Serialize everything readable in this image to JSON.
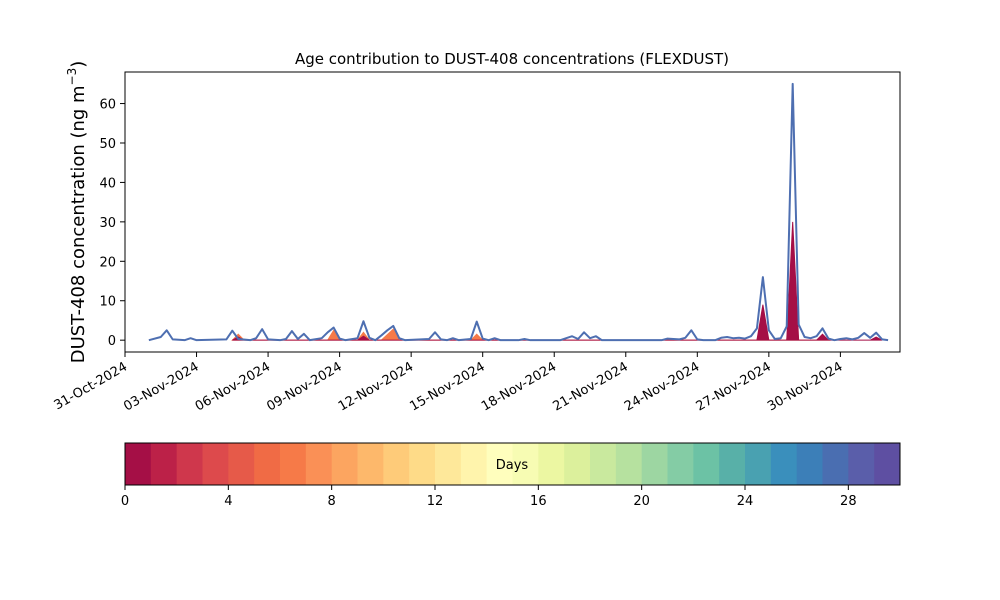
{
  "chart_data": {
    "type": "area",
    "title": "Age contribution to DUST-408 concentrations (FLEXDUST)",
    "ylabel": "DUST-408 concentration (ng m",
    "ylabel_superscript": "−3",
    "ylabel_close": ")",
    "xlabel": "",
    "ylim": [
      -3,
      68
    ],
    "xlim": [
      "2024-10-31T00:00",
      "2024-12-02T12:00"
    ],
    "grid": false,
    "x_ticks": [
      "31-Oct-2024",
      "03-Nov-2024",
      "06-Nov-2024",
      "09-Nov-2024",
      "12-Nov-2024",
      "15-Nov-2024",
      "18-Nov-2024",
      "21-Nov-2024",
      "24-Nov-2024",
      "27-Nov-2024",
      "30-Nov-2024"
    ],
    "y_ticks": [
      0,
      10,
      20,
      30,
      40,
      50,
      60
    ],
    "series": [
      {
        "type": "line",
        "color": "#4e6fb1",
        "points": [
          [
            "2024-11-01T00:00",
            0
          ],
          [
            "2024-11-01T12:00",
            0.8
          ],
          [
            "2024-11-01T18:00",
            2.5
          ],
          [
            "2024-11-02T00:00",
            0.2
          ],
          [
            "2024-11-02T12:00",
            0
          ],
          [
            "2024-11-02T18:00",
            0.5
          ],
          [
            "2024-11-03T00:00",
            0
          ],
          [
            "2024-11-04T06:00",
            0.2
          ],
          [
            "2024-11-04T12:00",
            2.4
          ],
          [
            "2024-11-04T18:00",
            0.3
          ],
          [
            "2024-11-05T06:00",
            0
          ],
          [
            "2024-11-05T12:00",
            0.5
          ],
          [
            "2024-11-05T18:00",
            2.8
          ],
          [
            "2024-11-06T00:00",
            0.2
          ],
          [
            "2024-11-06T12:00",
            0
          ],
          [
            "2024-11-06T18:00",
            0.3
          ],
          [
            "2024-11-07T00:00",
            2.3
          ],
          [
            "2024-11-07T06:00",
            0.3
          ],
          [
            "2024-11-07T12:00",
            1.6
          ],
          [
            "2024-11-07T18:00",
            0
          ],
          [
            "2024-11-08T06:00",
            0.5
          ],
          [
            "2024-11-08T12:00",
            2.0
          ],
          [
            "2024-11-08T18:00",
            3.2
          ],
          [
            "2024-11-09T00:00",
            0.4
          ],
          [
            "2024-11-09T06:00",
            0
          ],
          [
            "2024-11-09T18:00",
            0.5
          ],
          [
            "2024-11-10T00:00",
            4.8
          ],
          [
            "2024-11-10T06:00",
            0.6
          ],
          [
            "2024-11-10T12:00",
            0
          ],
          [
            "2024-11-10T18:00",
            1.2
          ],
          [
            "2024-11-11T00:00",
            2.5
          ],
          [
            "2024-11-11T06:00",
            3.6
          ],
          [
            "2024-11-11T12:00",
            0.5
          ],
          [
            "2024-11-11T18:00",
            0
          ],
          [
            "2024-11-12T18:00",
            0.3
          ],
          [
            "2024-11-13T00:00",
            2.0
          ],
          [
            "2024-11-13T06:00",
            0.2
          ],
          [
            "2024-11-13T12:00",
            0
          ],
          [
            "2024-11-13T18:00",
            0.5
          ],
          [
            "2024-11-14T00:00",
            0
          ],
          [
            "2024-11-14T12:00",
            0.3
          ],
          [
            "2024-11-14T18:00",
            4.7
          ],
          [
            "2024-11-15T00:00",
            0.4
          ],
          [
            "2024-11-15T06:00",
            0
          ],
          [
            "2024-11-15T12:00",
            0.5
          ],
          [
            "2024-11-15T18:00",
            0
          ],
          [
            "2024-11-16T12:00",
            0
          ],
          [
            "2024-11-16T18:00",
            0.3
          ],
          [
            "2024-11-17T00:00",
            0
          ],
          [
            "2024-11-18T06:00",
            0
          ],
          [
            "2024-11-18T12:00",
            0.5
          ],
          [
            "2024-11-18T18:00",
            1.0
          ],
          [
            "2024-11-19T00:00",
            0.3
          ],
          [
            "2024-11-19T06:00",
            2.0
          ],
          [
            "2024-11-19T12:00",
            0.5
          ],
          [
            "2024-11-19T18:00",
            1.0
          ],
          [
            "2024-11-20T00:00",
            0
          ],
          [
            "2024-11-22T12:00",
            0
          ],
          [
            "2024-11-22T18:00",
            0.4
          ],
          [
            "2024-11-23T06:00",
            0.2
          ],
          [
            "2024-11-23T12:00",
            0.6
          ],
          [
            "2024-11-23T18:00",
            2.5
          ],
          [
            "2024-11-24T00:00",
            0.2
          ],
          [
            "2024-11-24T06:00",
            0
          ],
          [
            "2024-11-24T18:00",
            0
          ],
          [
            "2024-11-25T00:00",
            0.6
          ],
          [
            "2024-11-25T06:00",
            0.8
          ],
          [
            "2024-11-25T12:00",
            0.5
          ],
          [
            "2024-11-25T18:00",
            0.6
          ],
          [
            "2024-11-26T00:00",
            0.4
          ],
          [
            "2024-11-26T06:00",
            1.0
          ],
          [
            "2024-11-26T12:00",
            3.0
          ],
          [
            "2024-11-26T18:00",
            16.0
          ],
          [
            "2024-11-27T00:00",
            2.5
          ],
          [
            "2024-11-27T06:00",
            0.3
          ],
          [
            "2024-11-27T12:00",
            0.5
          ],
          [
            "2024-11-27T18:00",
            3.5
          ],
          [
            "2024-11-28T00:00",
            65.0
          ],
          [
            "2024-11-28T06:00",
            4.0
          ],
          [
            "2024-11-28T12:00",
            0.8
          ],
          [
            "2024-11-28T18:00",
            0.5
          ],
          [
            "2024-11-29T00:00",
            1.0
          ],
          [
            "2024-11-29T06:00",
            3.0
          ],
          [
            "2024-11-29T12:00",
            0.4
          ],
          [
            "2024-11-29T18:00",
            0
          ],
          [
            "2024-11-30T00:00",
            0.3
          ],
          [
            "2024-11-30T06:00",
            0.5
          ],
          [
            "2024-11-30T12:00",
            0.2
          ],
          [
            "2024-11-30T18:00",
            0.6
          ],
          [
            "2024-12-01T00:00",
            1.8
          ],
          [
            "2024-12-01T06:00",
            0.6
          ],
          [
            "2024-12-01T12:00",
            1.9
          ],
          [
            "2024-12-01T18:00",
            0.2
          ],
          [
            "2024-12-02T00:00",
            0
          ]
        ]
      },
      {
        "type": "area",
        "color": "#f67a48",
        "points": [
          [
            "2024-11-04T12:00",
            0
          ],
          [
            "2024-11-04T18:00",
            1.5
          ],
          [
            "2024-11-05T00:00",
            0
          ],
          [
            "2024-11-08T12:00",
            0
          ],
          [
            "2024-11-08T18:00",
            2.5
          ],
          [
            "2024-11-09T00:00",
            0
          ],
          [
            "2024-11-09T18:00",
            0
          ],
          [
            "2024-11-10T00:00",
            2.0
          ],
          [
            "2024-11-10T06:00",
            0
          ],
          [
            "2024-11-10T18:00",
            0
          ],
          [
            "2024-11-11T06:00",
            2.8
          ],
          [
            "2024-11-11T12:00",
            0
          ],
          [
            "2024-11-14T12:00",
            0
          ],
          [
            "2024-11-14T18:00",
            1.5
          ],
          [
            "2024-11-15T00:00",
            0
          ],
          [
            "2024-11-26T12:00",
            0
          ],
          [
            "2024-11-26T18:00",
            5.0
          ],
          [
            "2024-11-27T00:00",
            0
          ],
          [
            "2024-11-27T18:00",
            0
          ],
          [
            "2024-11-28T00:00",
            14.0
          ],
          [
            "2024-11-28T06:00",
            0
          ],
          [
            "2024-11-29T00:00",
            0
          ],
          [
            "2024-11-29T06:00",
            1.2
          ],
          [
            "2024-11-29T12:00",
            0
          ]
        ]
      },
      {
        "type": "area",
        "color": "#a50f46",
        "points": [
          [
            "2024-11-04T12:00",
            0
          ],
          [
            "2024-11-04T18:00",
            0.8
          ],
          [
            "2024-11-05T00:00",
            0
          ],
          [
            "2024-11-09T18:00",
            0
          ],
          [
            "2024-11-10T00:00",
            1.0
          ],
          [
            "2024-11-10T06:00",
            0
          ],
          [
            "2024-11-26T12:00",
            0
          ],
          [
            "2024-11-26T18:00",
            9.0
          ],
          [
            "2024-11-27T00:00",
            0
          ],
          [
            "2024-11-27T18:00",
            0
          ],
          [
            "2024-11-28T00:00",
            30.0
          ],
          [
            "2024-11-28T06:00",
            0
          ],
          [
            "2024-11-29T00:00",
            0
          ],
          [
            "2024-11-29T06:00",
            1.5
          ],
          [
            "2024-11-29T12:00",
            0
          ],
          [
            "2024-12-01T06:00",
            0
          ],
          [
            "2024-12-01T12:00",
            0.8
          ],
          [
            "2024-12-01T18:00",
            0
          ]
        ]
      }
    ],
    "colorbar": {
      "label": "Days",
      "range": [
        0,
        30
      ],
      "ticks": [
        0,
        4,
        8,
        12,
        16,
        20,
        24,
        28
      ],
      "colors": [
        "#a50f46",
        "#bc2148",
        "#cf374c",
        "#dd4a4c",
        "#e65a49",
        "#f06b45",
        "#f67a48",
        "#fa9056",
        "#fca560",
        "#fdb86b",
        "#fecb79",
        "#fedb88",
        "#fee89a",
        "#fff4ac",
        "#fffebd",
        "#f7fcb3",
        "#ecf7a2",
        "#dcf09c",
        "#c9e99e",
        "#b6e19f",
        "#9dd6a2",
        "#84cca5",
        "#6cc2a5",
        "#58b0a8",
        "#49a1b1",
        "#3a8fbc",
        "#3c7fb8",
        "#4a6eb1",
        "#5a5eaa",
        "#5e4fa2"
      ]
    }
  }
}
